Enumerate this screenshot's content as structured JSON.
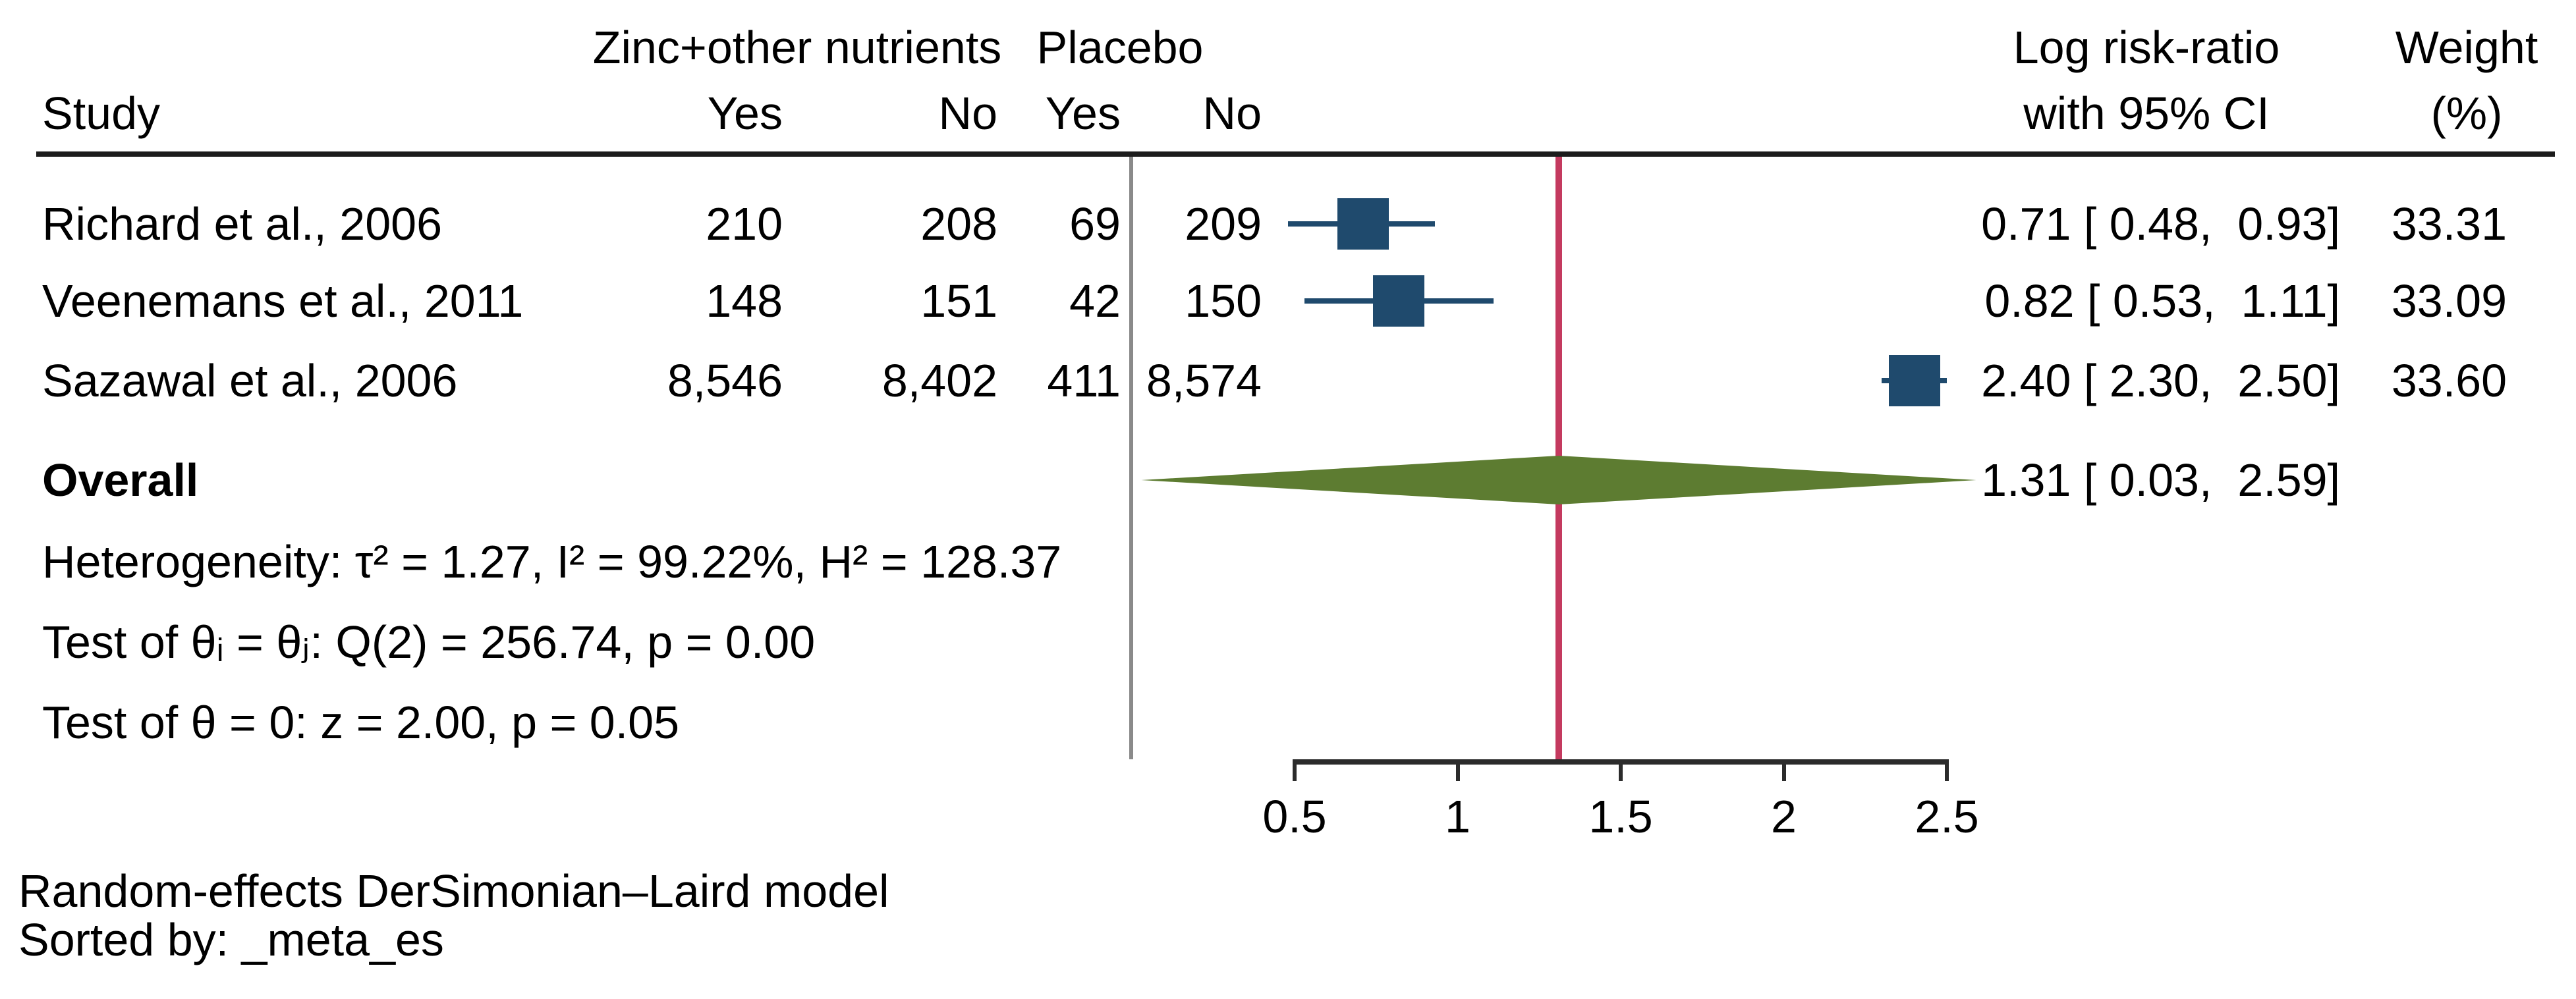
{
  "header": {
    "group1": "Zinc+other nutrients",
    "group2": "Placebo",
    "study": "Study",
    "sub_zinc_yes": "Yes",
    "sub_zinc_no": "No",
    "sub_placebo_yes": "Yes",
    "sub_placebo_no": "No",
    "effect_line1": "Log risk-ratio",
    "effect_line2": "with 95% CI",
    "weight_line1": "Weight",
    "weight_line2": "(%)"
  },
  "rows": [
    {
      "study": "Richard et al., 2006",
      "zinc_yes": "210",
      "zinc_no": "208",
      "placebo_yes": "69",
      "placebo_no": "209",
      "ci": "0.71 [ 0.48,  0.93]",
      "weight": "33.31"
    },
    {
      "study": "Veenemans et al., 2011",
      "zinc_yes": "148",
      "zinc_no": "151",
      "placebo_yes": "42",
      "placebo_no": "150",
      "ci": "0.82 [ 0.53,  1.11]",
      "weight": "33.09"
    },
    {
      "study": "Sazawal et al., 2006",
      "zinc_yes": "8,546",
      "zinc_no": "8,402",
      "placebo_yes": "411",
      "placebo_no": "8,574",
      "ci": "2.40 [ 2.30,  2.50]",
      "weight": "33.60"
    }
  ],
  "overall": {
    "label": "Overall",
    "ci": "1.31 [ 0.03,  2.59]"
  },
  "stats": {
    "heterogeneity": "Heterogeneity: τ² = 1.27, I² = 99.22%, H² = 128.37",
    "test_q": "Test of θᵢ = θⱼ: Q(2) = 256.74, p = 0.00",
    "test_z": "Test of θ = 0: z = 2.00, p = 0.05"
  },
  "footer": {
    "line1": "Random-effects DerSimonian–Laird model",
    "line2": "Sorted by: _meta_es"
  },
  "axis": {
    "tick_labels": [
      "0.5",
      "1",
      "1.5",
      "2",
      "2.5"
    ]
  },
  "colors": {
    "marker_navy": "#1F4A6D",
    "diamond_green": "#5D7C31",
    "overall_line_red": "#C43A5F",
    "divider_gray": "#8A8A8A",
    "axis_dark": "#2B2B2B",
    "rule_black": "#1C1C1C",
    "text": "#000000"
  },
  "chart_data": {
    "type": "forest",
    "effect_measure": "Log risk-ratio",
    "model": "Random-effects DerSimonian–Laird",
    "sorted_by": "_meta_es",
    "x_ticks": [
      0.5,
      1,
      1.5,
      2,
      2.5
    ],
    "xlim": [
      0.5,
      2.5
    ],
    "reference_line": 1.31,
    "studies": [
      {
        "name": "Richard et al., 2006",
        "events_treat": 210,
        "noevents_treat": 208,
        "events_ctrl": 69,
        "noevents_ctrl": 209,
        "effect": 0.71,
        "ci_low": 0.48,
        "ci_high": 0.93,
        "weight_pct": 33.31
      },
      {
        "name": "Veenemans et al., 2011",
        "events_treat": 148,
        "noevents_treat": 151,
        "events_ctrl": 42,
        "noevents_ctrl": 150,
        "effect": 0.82,
        "ci_low": 0.53,
        "ci_high": 1.11,
        "weight_pct": 33.09
      },
      {
        "name": "Sazawal et al., 2006",
        "events_treat": 8546,
        "noevents_treat": 8402,
        "events_ctrl": 411,
        "noevents_ctrl": 8574,
        "effect": 2.4,
        "ci_low": 2.3,
        "ci_high": 2.5,
        "weight_pct": 33.6
      }
    ],
    "overall": {
      "effect": 1.31,
      "ci_low": 0.03,
      "ci_high": 2.59
    },
    "heterogeneity": {
      "tau2": 1.27,
      "I2_pct": 99.22,
      "H2": 128.37,
      "Q_df": 2,
      "Q": 256.74,
      "p_Q": 0.0,
      "z": 2.0,
      "p_z": 0.05
    }
  }
}
